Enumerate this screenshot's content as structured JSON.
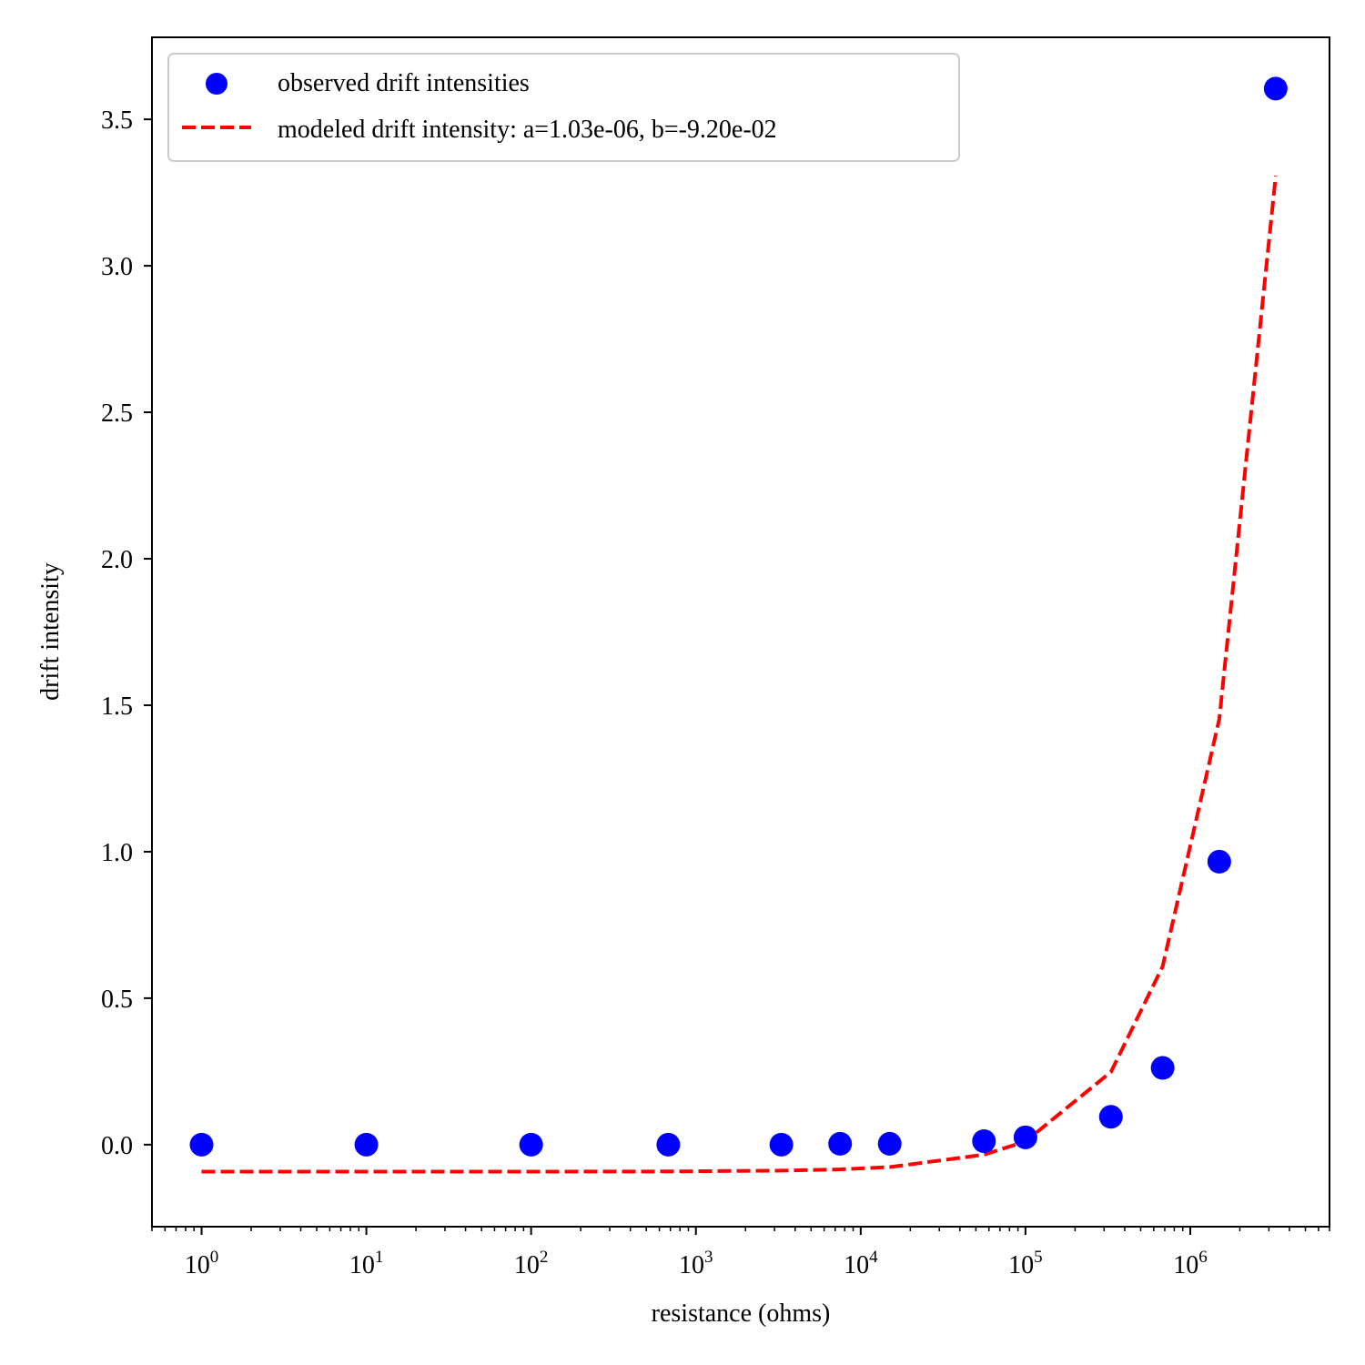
{
  "chart_data": {
    "type": "scatter",
    "xscale": "log",
    "xlim": [
      0.5,
      7000000
    ],
    "ylim": [
      -0.28,
      3.78
    ],
    "xlabel": "resistance (ohms)",
    "ylabel": "drift intensity",
    "x_ticks": [
      {
        "value": 1,
        "base": "10",
        "exp": "0"
      },
      {
        "value": 10,
        "base": "10",
        "exp": "1"
      },
      {
        "value": 100,
        "base": "10",
        "exp": "2"
      },
      {
        "value": 1000,
        "base": "10",
        "exp": "3"
      },
      {
        "value": 10000,
        "base": "10",
        "exp": "4"
      },
      {
        "value": 100000,
        "base": "10",
        "exp": "5"
      },
      {
        "value": 1000000,
        "base": "10",
        "exp": "6"
      }
    ],
    "y_ticks": [
      {
        "value": 0.0,
        "label": "0.0"
      },
      {
        "value": 0.5,
        "label": "0.5"
      },
      {
        "value": 1.0,
        "label": "1.0"
      },
      {
        "value": 1.5,
        "label": "1.5"
      },
      {
        "value": 2.0,
        "label": "2.0"
      },
      {
        "value": 2.5,
        "label": "2.5"
      },
      {
        "value": 3.0,
        "label": "3.0"
      },
      {
        "value": 3.5,
        "label": "3.5"
      }
    ],
    "legend_position": "top-left",
    "series": [
      {
        "name": "observed drift intensities",
        "kind": "scatter",
        "color": "#0000ff",
        "points": [
          {
            "x": 1,
            "y": 0.0
          },
          {
            "x": 10,
            "y": 0.0
          },
          {
            "x": 100,
            "y": 0.0
          },
          {
            "x": 680,
            "y": 0.0
          },
          {
            "x": 3300,
            "y": 0.0
          },
          {
            "x": 7500,
            "y": 0.003
          },
          {
            "x": 15000,
            "y": 0.003
          },
          {
            "x": 56000,
            "y": 0.012
          },
          {
            "x": 100000,
            "y": 0.025
          },
          {
            "x": 330000,
            "y": 0.095
          },
          {
            "x": 680000,
            "y": 0.262
          },
          {
            "x": 1500000,
            "y": 0.966
          },
          {
            "x": 3300000,
            "y": 3.605
          }
        ]
      },
      {
        "name": "modeled drift intensity: a=1.03e-06, b=-9.20e-02",
        "kind": "line",
        "dash": "dashed",
        "color": "#ff0000",
        "points": [
          {
            "x": 1,
            "y": -0.092
          },
          {
            "x": 10,
            "y": -0.092
          },
          {
            "x": 100,
            "y": -0.092
          },
          {
            "x": 680,
            "y": -0.0913
          },
          {
            "x": 3300,
            "y": -0.0886
          },
          {
            "x": 7500,
            "y": -0.0843
          },
          {
            "x": 15000,
            "y": -0.0766
          },
          {
            "x": 56000,
            "y": -0.0343
          },
          {
            "x": 100000,
            "y": 0.011
          },
          {
            "x": 330000,
            "y": 0.248
          },
          {
            "x": 680000,
            "y": 0.608
          },
          {
            "x": 1500000,
            "y": 1.453
          },
          {
            "x": 3300000,
            "y": 3.307
          }
        ]
      }
    ]
  }
}
